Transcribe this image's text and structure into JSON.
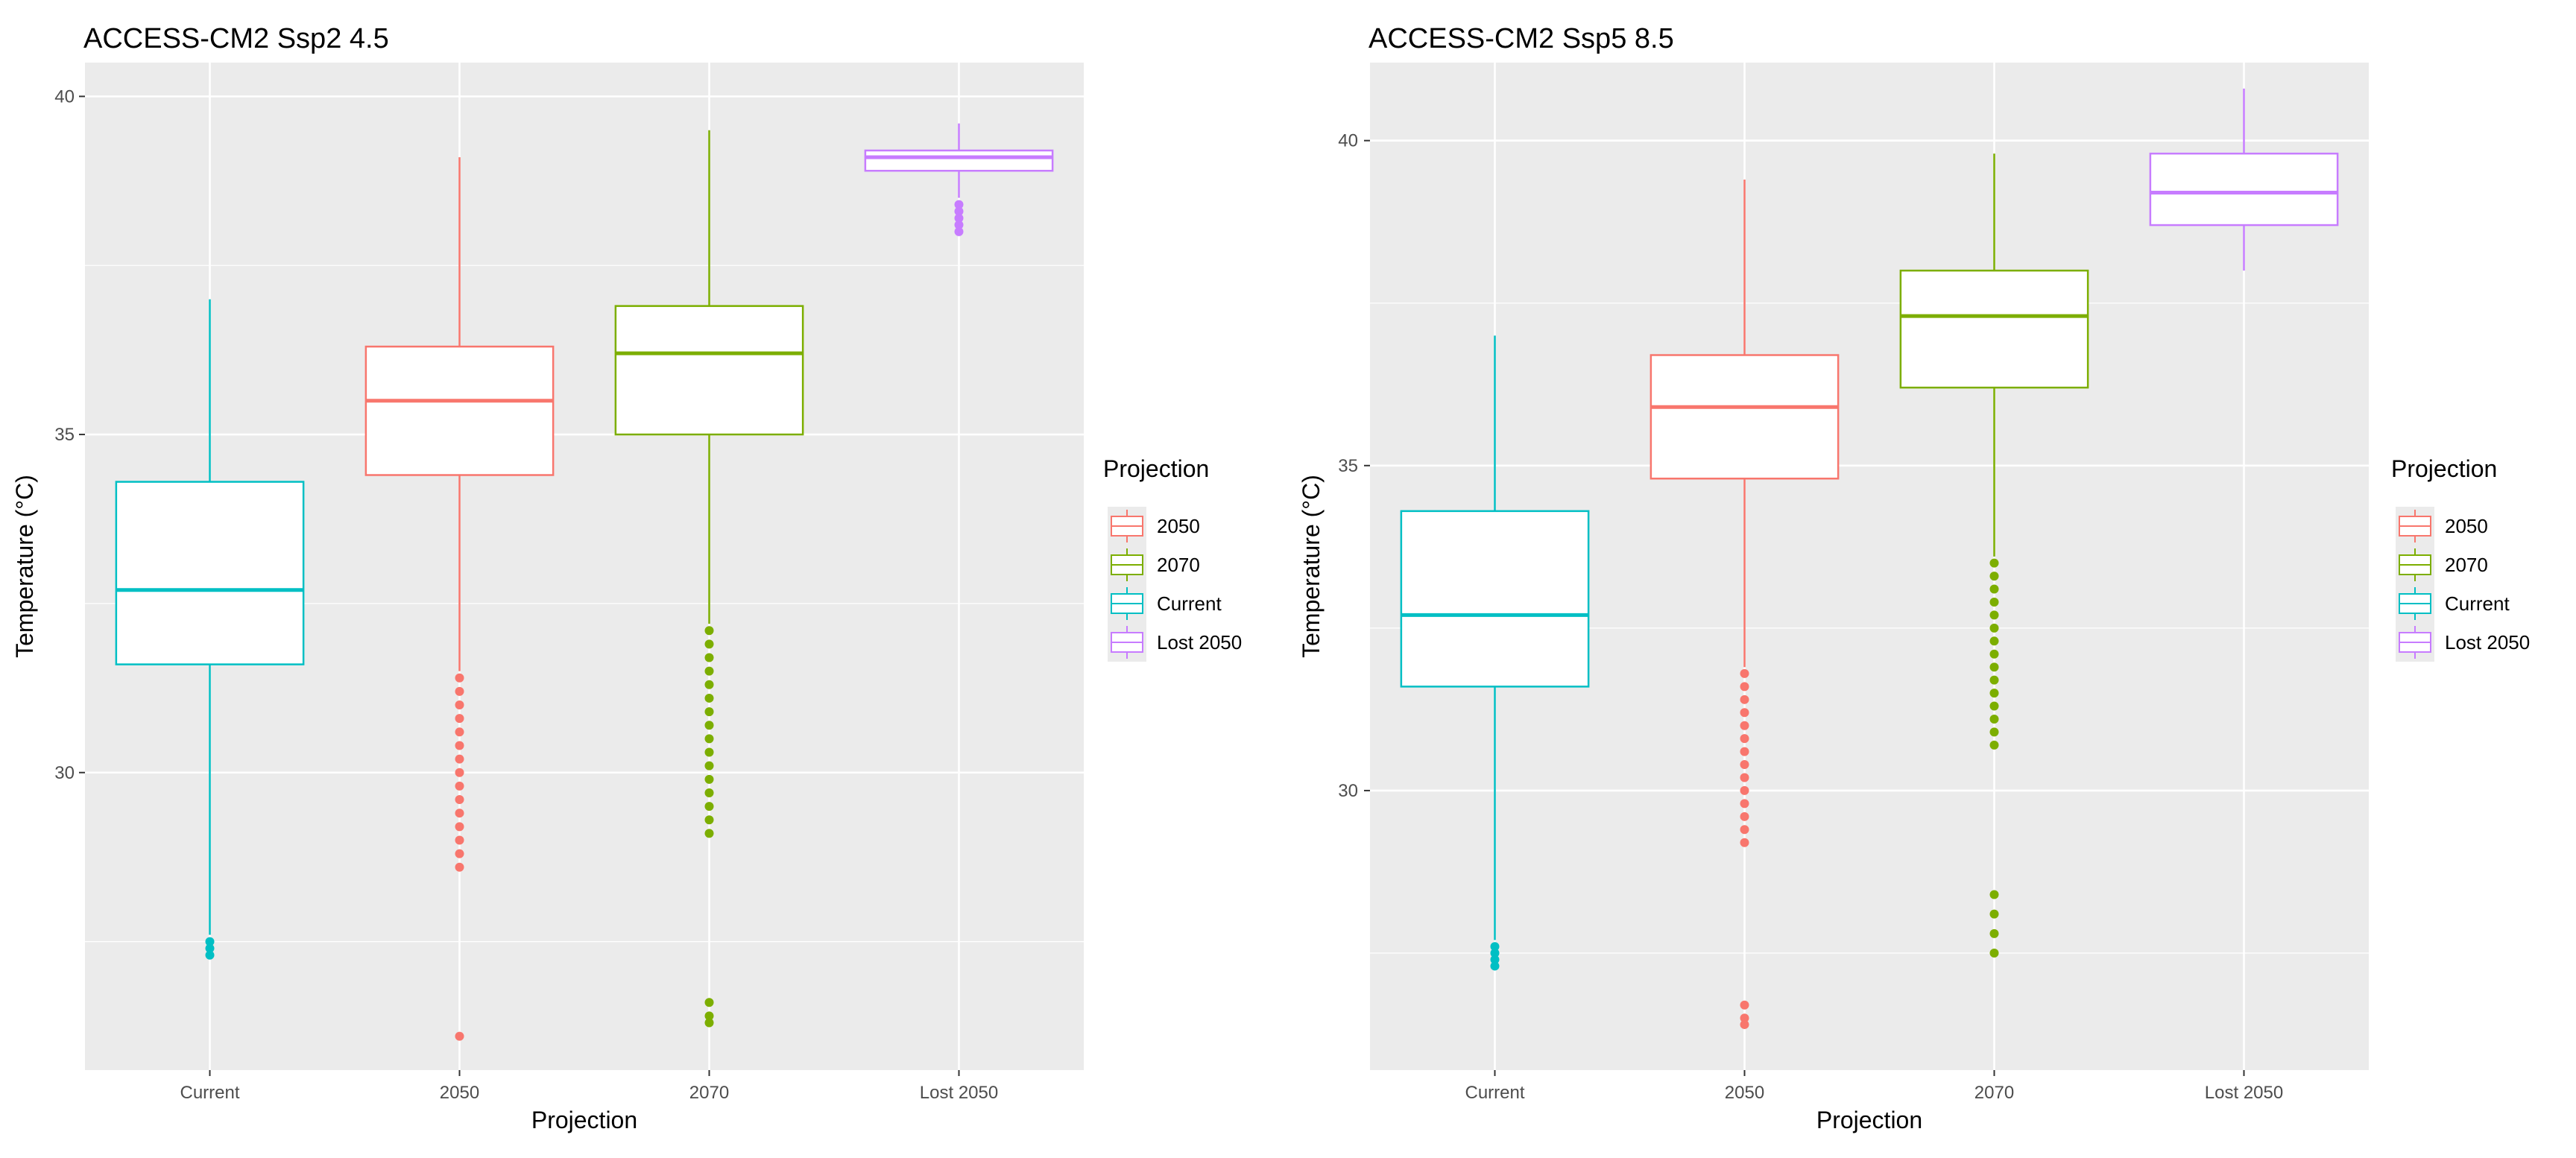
{
  "colors": {
    "panel_bg": "#EBEBEB",
    "gridline": "#FFFFFF",
    "tick_text": "#4D4D4D",
    "2050": "#F8766D",
    "2070": "#7CAE00",
    "Current": "#00BFC4",
    "Lost 2050": "#C77CFF"
  },
  "chart_data": [
    {
      "type": "boxplot",
      "title": "ACCESS-CM2 Ssp2 4.5",
      "xlabel": "Projection",
      "ylabel": "Temperature (°C)",
      "ylim": [
        25.6,
        40.5
      ],
      "yticks": [
        30,
        35,
        40
      ],
      "categories": [
        "Current",
        "2050",
        "2070",
        "Lost 2050"
      ],
      "legend": {
        "title": "Projection",
        "entries": [
          "2050",
          "2070",
          "Current",
          "Lost 2050"
        ],
        "position": "right"
      },
      "boxes": [
        {
          "category": "Current",
          "color_key": "Current",
          "lower_whisker": 27.6,
          "q1": 31.6,
          "median": 32.7,
          "q3": 34.3,
          "upper_whisker": 37.0,
          "outliers": [
            27.5,
            27.4,
            27.3
          ]
        },
        {
          "category": "2050",
          "color_key": "2050",
          "lower_whisker": 31.5,
          "q1": 34.4,
          "median": 35.5,
          "q3": 36.3,
          "upper_whisker": 39.1,
          "outliers": [
            31.4,
            31.2,
            31.0,
            30.8,
            30.6,
            30.4,
            30.2,
            30.0,
            29.8,
            29.6,
            29.4,
            29.2,
            29.0,
            28.8,
            28.6,
            26.1
          ]
        },
        {
          "category": "2070",
          "color_key": "2070",
          "lower_whisker": 32.2,
          "q1": 35.0,
          "median": 36.2,
          "q3": 36.9,
          "upper_whisker": 39.5,
          "outliers": [
            32.1,
            31.9,
            31.7,
            31.5,
            31.3,
            31.1,
            30.9,
            30.7,
            30.5,
            30.3,
            30.1,
            29.9,
            29.7,
            29.5,
            29.3,
            29.1,
            26.6,
            26.4,
            26.3
          ]
        },
        {
          "category": "Lost 2050",
          "color_key": "Lost 2050",
          "lower_whisker": 38.5,
          "q1": 38.9,
          "median": 39.1,
          "q3": 39.2,
          "upper_whisker": 39.6,
          "outliers": [
            38.4,
            38.3,
            38.2,
            38.1,
            38.0
          ]
        }
      ]
    },
    {
      "type": "boxplot",
      "title": "ACCESS-CM2 Ssp5 8.5",
      "xlabel": "Projection",
      "ylabel": "Temperature (°C)",
      "ylim": [
        25.7,
        41.2
      ],
      "yticks": [
        30,
        35,
        40
      ],
      "categories": [
        "Current",
        "2050",
        "2070",
        "Lost 2050"
      ],
      "legend": {
        "title": "Projection",
        "entries": [
          "2050",
          "2070",
          "Current",
          "Lost 2050"
        ],
        "position": "right"
      },
      "boxes": [
        {
          "category": "Current",
          "color_key": "Current",
          "lower_whisker": 27.7,
          "q1": 31.6,
          "median": 32.7,
          "q3": 34.3,
          "upper_whisker": 37.0,
          "outliers": [
            27.6,
            27.5,
            27.4,
            27.3
          ]
        },
        {
          "category": "2050",
          "color_key": "2050",
          "lower_whisker": 31.9,
          "q1": 34.8,
          "median": 35.9,
          "q3": 36.7,
          "upper_whisker": 39.4,
          "outliers": [
            31.8,
            31.6,
            31.4,
            31.2,
            31.0,
            30.8,
            30.6,
            30.4,
            30.2,
            30.0,
            29.8,
            29.6,
            29.4,
            29.2,
            26.7,
            26.5,
            26.4
          ]
        },
        {
          "category": "2070",
          "color_key": "2070",
          "lower_whisker": 33.6,
          "q1": 36.2,
          "median": 37.3,
          "q3": 38.0,
          "upper_whisker": 39.8,
          "outliers": [
            33.5,
            33.3,
            33.1,
            32.9,
            32.7,
            32.5,
            32.3,
            32.1,
            31.9,
            31.7,
            31.5,
            31.3,
            31.1,
            30.9,
            30.7,
            28.4,
            28.1,
            27.8,
            27.5
          ]
        },
        {
          "category": "Lost 2050",
          "color_key": "Lost 2050",
          "lower_whisker": 38.0,
          "q1": 38.7,
          "median": 39.2,
          "q3": 39.8,
          "upper_whisker": 40.8,
          "outliers": []
        }
      ]
    }
  ]
}
